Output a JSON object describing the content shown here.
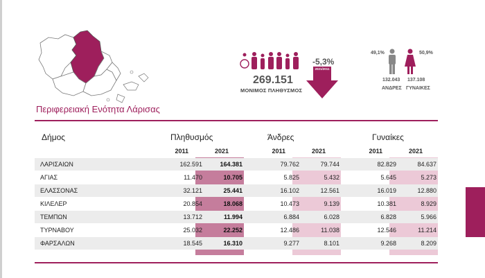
{
  "region_title": "Περιφερειακή Ενότητα Λάρισας",
  "summary": {
    "total_population": "269.151",
    "total_label": "ΜΟΝΙΜΟΣ ΠΛΗΘΥΣΜΟΣ",
    "change": "-5,3%",
    "change_period": "2021/2011",
    "men_pct": "49,1%",
    "women_pct": "50,9%",
    "men_count": "132.043",
    "women_count": "137.108",
    "men_label": "ΑΝΔΡΕΣ",
    "women_label": "ΓΥΝΑΙΚΕΣ"
  },
  "colors": {
    "accent": "#9e1f5c",
    "shade_dark": "#c57d9c",
    "shade_light": "#ecc9d7",
    "stripe": "#ececec"
  },
  "icons": [
    "population-icon",
    "man-icon",
    "woman-icon",
    "down-arrow-icon",
    "region-map"
  ],
  "table": {
    "headers": {
      "dimos": "Δήμος",
      "population": "Πληθυσμός",
      "men": "Άνδρες",
      "women": "Γυναίκες"
    },
    "years": [
      "2011",
      "2021",
      "2011",
      "2021",
      "2011",
      "2021"
    ],
    "rows": [
      {
        "name": "ΛΑΡΙΣΑΙΩΝ",
        "pop2011": "162.591",
        "pop2021": "164.381",
        "men2011": "79.762",
        "men2021": "79.744",
        "women2011": "82.829",
        "women2021": "84.637"
      },
      {
        "name": "ΑΓΙΑΣ",
        "pop2011": "11.470",
        "pop2021": "10.705",
        "men2011": "5.825",
        "men2021": "5.432",
        "women2011": "5.645",
        "women2021": "5.273"
      },
      {
        "name": "ΕΛΑΣΣΟΝΑΣ",
        "pop2011": "32.121",
        "pop2021": "25.441",
        "men2011": "16.102",
        "men2021": "12.561",
        "women2011": "16.019",
        "women2021": "12.880"
      },
      {
        "name": "ΚΙΛΕΛΕΡ",
        "pop2011": "20.854",
        "pop2021": "18.068",
        "men2011": "10.473",
        "men2021": "9.139",
        "women2011": "10.381",
        "women2021": "8.929"
      },
      {
        "name": "ΤΕΜΠΩΝ",
        "pop2011": "13.712",
        "pop2021": "11.994",
        "men2011": "6.884",
        "men2021": "6.028",
        "women2011": "6.828",
        "women2021": "5.966"
      },
      {
        "name": "ΤΥΡΝΑΒΟΥ",
        "pop2011": "25.032",
        "pop2021": "22.252",
        "men2011": "12.486",
        "men2021": "11.038",
        "women2011": "12.546",
        "women2021": "11.214"
      },
      {
        "name": "ΦΑΡΣΑΛΩΝ",
        "pop2011": "18.545",
        "pop2021": "16.310",
        "men2011": "9.277",
        "men2021": "8.101",
        "women2011": "9.268",
        "women2021": "8.209"
      }
    ]
  }
}
